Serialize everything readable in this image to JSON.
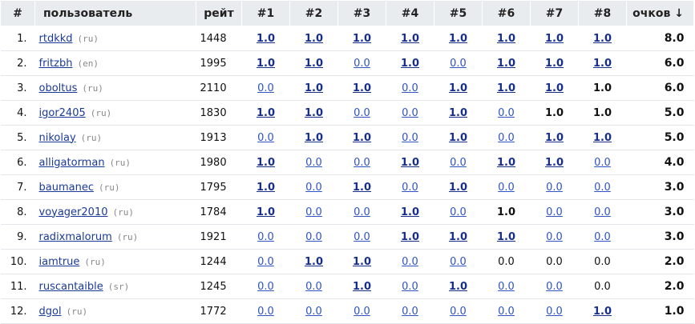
{
  "columns": {
    "rank": "#",
    "user": "пользователь",
    "rating": "рейт",
    "games": [
      "#1",
      "#2",
      "#3",
      "#4",
      "#5",
      "#6",
      "#7",
      "#8"
    ],
    "points": "очков ↓"
  },
  "rows": [
    {
      "rank": "1.",
      "name": "rtdkkd",
      "country": "(ru)",
      "rating": "1448",
      "scores": [
        {
          "v": "1.0",
          "link": true
        },
        {
          "v": "1.0",
          "link": true
        },
        {
          "v": "1.0",
          "link": true
        },
        {
          "v": "1.0",
          "link": true
        },
        {
          "v": "1.0",
          "link": true
        },
        {
          "v": "1.0",
          "link": true
        },
        {
          "v": "1.0",
          "link": true
        },
        {
          "v": "1.0",
          "link": true
        }
      ],
      "points": "8.0"
    },
    {
      "rank": "2.",
      "name": "fritzbh",
      "country": "(en)",
      "rating": "1995",
      "scores": [
        {
          "v": "1.0",
          "link": true
        },
        {
          "v": "1.0",
          "link": true
        },
        {
          "v": "0.0",
          "link": true
        },
        {
          "v": "1.0",
          "link": true
        },
        {
          "v": "0.0",
          "link": true
        },
        {
          "v": "1.0",
          "link": true
        },
        {
          "v": "1.0",
          "link": true
        },
        {
          "v": "1.0",
          "link": true
        }
      ],
      "points": "6.0"
    },
    {
      "rank": "3.",
      "name": "oboltus",
      "country": "(ru)",
      "rating": "2110",
      "scores": [
        {
          "v": "0.0",
          "link": true
        },
        {
          "v": "1.0",
          "link": true
        },
        {
          "v": "1.0",
          "link": true
        },
        {
          "v": "0.0",
          "link": true
        },
        {
          "v": "1.0",
          "link": true
        },
        {
          "v": "1.0",
          "link": true
        },
        {
          "v": "1.0",
          "link": true
        },
        {
          "v": "1.0",
          "link": false
        }
      ],
      "points": "6.0"
    },
    {
      "rank": "4.",
      "name": "igor2405",
      "country": "(ru)",
      "rating": "1830",
      "scores": [
        {
          "v": "1.0",
          "link": true
        },
        {
          "v": "1.0",
          "link": true
        },
        {
          "v": "0.0",
          "link": true
        },
        {
          "v": "0.0",
          "link": true
        },
        {
          "v": "1.0",
          "link": true
        },
        {
          "v": "0.0",
          "link": true
        },
        {
          "v": "1.0",
          "link": false
        },
        {
          "v": "1.0",
          "link": false
        }
      ],
      "points": "5.0"
    },
    {
      "rank": "5.",
      "name": "nikolay",
      "country": "(ru)",
      "rating": "1913",
      "scores": [
        {
          "v": "0.0",
          "link": true
        },
        {
          "v": "1.0",
          "link": true
        },
        {
          "v": "1.0",
          "link": true
        },
        {
          "v": "0.0",
          "link": true
        },
        {
          "v": "1.0",
          "link": true
        },
        {
          "v": "0.0",
          "link": true
        },
        {
          "v": "1.0",
          "link": true
        },
        {
          "v": "1.0",
          "link": true
        }
      ],
      "points": "5.0"
    },
    {
      "rank": "6.",
      "name": "alligatorman",
      "country": "(ru)",
      "rating": "1980",
      "scores": [
        {
          "v": "1.0",
          "link": true
        },
        {
          "v": "0.0",
          "link": true
        },
        {
          "v": "0.0",
          "link": true
        },
        {
          "v": "1.0",
          "link": true
        },
        {
          "v": "0.0",
          "link": true
        },
        {
          "v": "1.0",
          "link": true
        },
        {
          "v": "1.0",
          "link": true
        },
        {
          "v": "0.0",
          "link": true
        }
      ],
      "points": "4.0"
    },
    {
      "rank": "7.",
      "name": "baumanec",
      "country": "(ru)",
      "rating": "1795",
      "scores": [
        {
          "v": "1.0",
          "link": true
        },
        {
          "v": "0.0",
          "link": true
        },
        {
          "v": "1.0",
          "link": true
        },
        {
          "v": "0.0",
          "link": true
        },
        {
          "v": "1.0",
          "link": true
        },
        {
          "v": "0.0",
          "link": true
        },
        {
          "v": "0.0",
          "link": true
        },
        {
          "v": "0.0",
          "link": true
        }
      ],
      "points": "3.0"
    },
    {
      "rank": "8.",
      "name": "voyager2010",
      "country": "(ru)",
      "rating": "1784",
      "scores": [
        {
          "v": "1.0",
          "link": true
        },
        {
          "v": "0.0",
          "link": true
        },
        {
          "v": "0.0",
          "link": true
        },
        {
          "v": "1.0",
          "link": true
        },
        {
          "v": "0.0",
          "link": true
        },
        {
          "v": "1.0",
          "link": false
        },
        {
          "v": "0.0",
          "link": true
        },
        {
          "v": "0.0",
          "link": true
        }
      ],
      "points": "3.0"
    },
    {
      "rank": "9.",
      "name": "radixmalorum",
      "country": "(ru)",
      "rating": "1921",
      "scores": [
        {
          "v": "0.0",
          "link": true
        },
        {
          "v": "0.0",
          "link": true
        },
        {
          "v": "0.0",
          "link": true
        },
        {
          "v": "1.0",
          "link": true
        },
        {
          "v": "1.0",
          "link": true
        },
        {
          "v": "1.0",
          "link": true
        },
        {
          "v": "0.0",
          "link": true
        },
        {
          "v": "0.0",
          "link": true
        }
      ],
      "points": "3.0"
    },
    {
      "rank": "10.",
      "name": "iamtrue",
      "country": "(ru)",
      "rating": "1244",
      "scores": [
        {
          "v": "0.0",
          "link": true
        },
        {
          "v": "1.0",
          "link": true
        },
        {
          "v": "1.0",
          "link": true
        },
        {
          "v": "0.0",
          "link": true
        },
        {
          "v": "0.0",
          "link": true
        },
        {
          "v": "0.0",
          "link": false
        },
        {
          "v": "0.0",
          "link": false
        },
        {
          "v": "0.0",
          "link": false
        }
      ],
      "points": "2.0"
    },
    {
      "rank": "11.",
      "name": "ruscantaible",
      "country": "(sr)",
      "rating": "1245",
      "scores": [
        {
          "v": "0.0",
          "link": true
        },
        {
          "v": "0.0",
          "link": true
        },
        {
          "v": "1.0",
          "link": true
        },
        {
          "v": "0.0",
          "link": true
        },
        {
          "v": "1.0",
          "link": true
        },
        {
          "v": "0.0",
          "link": true
        },
        {
          "v": "0.0",
          "link": true
        },
        {
          "v": "0.0",
          "link": false
        }
      ],
      "points": "2.0"
    },
    {
      "rank": "12.",
      "name": "dgol",
      "country": "(ru)",
      "rating": "1772",
      "scores": [
        {
          "v": "0.0",
          "link": true
        },
        {
          "v": "0.0",
          "link": true
        },
        {
          "v": "0.0",
          "link": true
        },
        {
          "v": "0.0",
          "link": true
        },
        {
          "v": "0.0",
          "link": true
        },
        {
          "v": "0.0",
          "link": true
        },
        {
          "v": "0.0",
          "link": true
        },
        {
          "v": "1.0",
          "link": true
        }
      ],
      "points": "1.0"
    }
  ]
}
